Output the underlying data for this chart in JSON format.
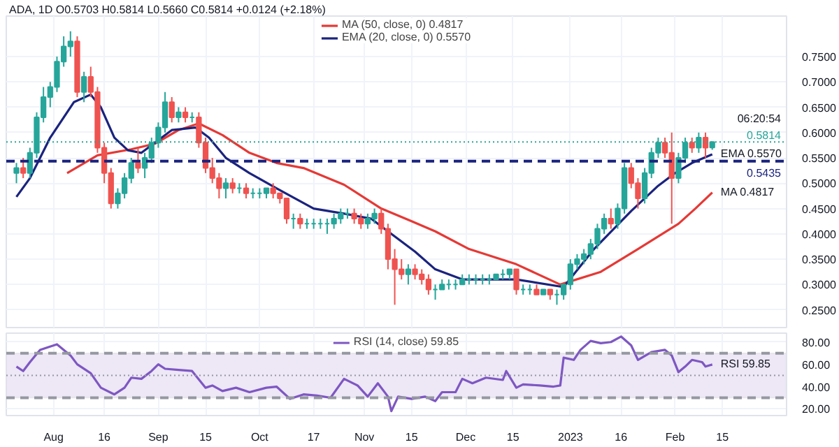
{
  "chart_data": [
    {
      "type": "candlestick",
      "title": "ADA, 1D",
      "annotations": [
        "O0.5703 H0.5814 L0.5660 C0.5814 +0.0124 (+2.18%)",
        "06:20:54",
        {
          "text": "EMA 0.5570",
          "x": "2023-02-12",
          "y": 0.557
        },
        {
          "text": "MA 0.4817",
          "x": "2023-02-12",
          "y": 0.4817
        }
      ],
      "x": [
        "2022-07-21",
        "2022-07-23",
        "2022-07-25",
        "2022-07-27",
        "2022-07-29",
        "2022-07-31",
        "2022-08-02",
        "2022-08-04",
        "2022-08-06",
        "2022-08-08",
        "2022-08-10",
        "2022-08-12",
        "2022-08-14",
        "2022-08-16",
        "2022-08-18",
        "2022-08-20",
        "2022-08-22",
        "2022-08-24",
        "2022-08-26",
        "2022-08-28",
        "2022-08-30",
        "2022-09-01",
        "2022-09-03",
        "2022-09-05",
        "2022-09-07",
        "2022-09-09",
        "2022-09-11",
        "2022-09-13",
        "2022-09-15",
        "2022-09-17",
        "2022-09-19",
        "2022-09-21",
        "2022-09-23",
        "2022-09-25",
        "2022-09-27",
        "2022-09-29",
        "2022-10-01",
        "2022-10-03",
        "2022-10-05",
        "2022-10-07",
        "2022-10-09",
        "2022-10-11",
        "2022-10-13",
        "2022-10-15",
        "2022-10-17",
        "2022-10-19",
        "2022-10-21",
        "2022-10-23",
        "2022-10-25",
        "2022-10-27",
        "2022-10-29",
        "2022-10-31",
        "2022-11-02",
        "2022-11-04",
        "2022-11-06",
        "2022-11-08",
        "2022-11-10",
        "2022-11-12",
        "2022-11-14",
        "2022-11-16",
        "2022-11-18",
        "2022-11-20",
        "2022-11-22",
        "2022-11-24",
        "2022-11-26",
        "2022-11-28",
        "2022-11-30",
        "2022-12-02",
        "2022-12-04",
        "2022-12-06",
        "2022-12-08",
        "2022-12-10",
        "2022-12-12",
        "2022-12-14",
        "2022-12-16",
        "2022-12-18",
        "2022-12-20",
        "2022-12-22",
        "2022-12-24",
        "2022-12-26",
        "2022-12-28",
        "2022-12-30",
        "2023-01-01",
        "2023-01-03",
        "2023-01-05",
        "2023-01-07",
        "2023-01-09",
        "2023-01-11",
        "2023-01-13",
        "2023-01-15",
        "2023-01-17",
        "2023-01-19",
        "2023-01-21",
        "2023-01-23",
        "2023-01-25",
        "2023-01-27",
        "2023-01-29",
        "2023-01-31",
        "2023-02-02",
        "2023-02-04",
        "2023-02-06",
        "2023-02-08",
        "2023-02-10",
        "2023-02-12"
      ],
      "ohlc": [
        [
          0.52,
          0.54,
          0.5,
          0.53
        ],
        [
          0.53,
          0.55,
          0.51,
          0.52
        ],
        [
          0.52,
          0.57,
          0.51,
          0.56
        ],
        [
          0.56,
          0.64,
          0.55,
          0.63
        ],
        [
          0.63,
          0.69,
          0.62,
          0.67
        ],
        [
          0.67,
          0.7,
          0.65,
          0.69
        ],
        [
          0.69,
          0.75,
          0.68,
          0.74
        ],
        [
          0.74,
          0.79,
          0.73,
          0.77
        ],
        [
          0.77,
          0.8,
          0.75,
          0.78
        ],
        [
          0.78,
          0.79,
          0.67,
          0.68
        ],
        [
          0.68,
          0.72,
          0.66,
          0.71
        ],
        [
          0.71,
          0.73,
          0.67,
          0.68
        ],
        [
          0.68,
          0.69,
          0.56,
          0.57
        ],
        [
          0.57,
          0.58,
          0.5,
          0.52
        ],
        [
          0.52,
          0.53,
          0.45,
          0.46
        ],
        [
          0.46,
          0.49,
          0.45,
          0.48
        ],
        [
          0.48,
          0.52,
          0.47,
          0.51
        ],
        [
          0.51,
          0.55,
          0.5,
          0.54
        ],
        [
          0.54,
          0.57,
          0.52,
          0.53
        ],
        [
          0.53,
          0.56,
          0.51,
          0.55
        ],
        [
          0.55,
          0.59,
          0.54,
          0.58
        ],
        [
          0.58,
          0.62,
          0.57,
          0.61
        ],
        [
          0.61,
          0.68,
          0.6,
          0.66
        ],
        [
          0.66,
          0.67,
          0.62,
          0.63
        ],
        [
          0.63,
          0.65,
          0.62,
          0.64
        ],
        [
          0.64,
          0.65,
          0.62,
          0.63
        ],
        [
          0.63,
          0.64,
          0.62,
          0.63
        ],
        [
          0.63,
          0.64,
          0.57,
          0.58
        ],
        [
          0.58,
          0.59,
          0.52,
          0.53
        ],
        [
          0.53,
          0.55,
          0.5,
          0.51
        ],
        [
          0.51,
          0.52,
          0.47,
          0.49
        ],
        [
          0.49,
          0.51,
          0.47,
          0.5
        ],
        [
          0.5,
          0.51,
          0.48,
          0.49
        ],
        [
          0.49,
          0.5,
          0.48,
          0.49
        ],
        [
          0.49,
          0.5,
          0.47,
          0.48
        ],
        [
          0.48,
          0.49,
          0.47,
          0.48
        ],
        [
          0.48,
          0.49,
          0.47,
          0.48
        ],
        [
          0.48,
          0.49,
          0.47,
          0.49
        ],
        [
          0.49,
          0.5,
          0.47,
          0.48
        ],
        [
          0.48,
          0.48,
          0.46,
          0.47
        ],
        [
          0.47,
          0.47,
          0.42,
          0.43
        ],
        [
          0.43,
          0.44,
          0.41,
          0.43
        ],
        [
          0.43,
          0.44,
          0.41,
          0.42
        ],
        [
          0.42,
          0.43,
          0.41,
          0.42
        ],
        [
          0.42,
          0.43,
          0.41,
          0.42
        ],
        [
          0.42,
          0.43,
          0.41,
          0.42
        ],
        [
          0.42,
          0.43,
          0.4,
          0.42
        ],
        [
          0.42,
          0.44,
          0.41,
          0.43
        ],
        [
          0.43,
          0.45,
          0.42,
          0.44
        ],
        [
          0.44,
          0.45,
          0.43,
          0.44
        ],
        [
          0.44,
          0.45,
          0.42,
          0.43
        ],
        [
          0.43,
          0.44,
          0.41,
          0.42
        ],
        [
          0.42,
          0.44,
          0.41,
          0.43
        ],
        [
          0.43,
          0.45,
          0.42,
          0.44
        ],
        [
          0.44,
          0.45,
          0.4,
          0.41
        ],
        [
          0.41,
          0.42,
          0.33,
          0.35
        ],
        [
          0.35,
          0.37,
          0.26,
          0.33
        ],
        [
          0.33,
          0.35,
          0.31,
          0.32
        ],
        [
          0.32,
          0.34,
          0.3,
          0.33
        ],
        [
          0.33,
          0.34,
          0.31,
          0.32
        ],
        [
          0.32,
          0.33,
          0.3,
          0.31
        ],
        [
          0.31,
          0.32,
          0.28,
          0.29
        ],
        [
          0.29,
          0.3,
          0.27,
          0.29
        ],
        [
          0.29,
          0.31,
          0.29,
          0.3
        ],
        [
          0.3,
          0.31,
          0.29,
          0.3
        ],
        [
          0.3,
          0.31,
          0.29,
          0.3
        ],
        [
          0.3,
          0.32,
          0.3,
          0.31
        ],
        [
          0.31,
          0.32,
          0.3,
          0.31
        ],
        [
          0.31,
          0.32,
          0.3,
          0.31
        ],
        [
          0.31,
          0.32,
          0.3,
          0.31
        ],
        [
          0.31,
          0.32,
          0.3,
          0.31
        ],
        [
          0.31,
          0.32,
          0.31,
          0.32
        ],
        [
          0.32,
          0.33,
          0.31,
          0.32
        ],
        [
          0.32,
          0.33,
          0.31,
          0.33
        ],
        [
          0.33,
          0.33,
          0.28,
          0.29
        ],
        [
          0.29,
          0.3,
          0.28,
          0.29
        ],
        [
          0.29,
          0.3,
          0.28,
          0.29
        ],
        [
          0.29,
          0.3,
          0.28,
          0.28
        ],
        [
          0.28,
          0.29,
          0.28,
          0.29
        ],
        [
          0.29,
          0.29,
          0.27,
          0.28
        ],
        [
          0.28,
          0.29,
          0.26,
          0.28
        ],
        [
          0.28,
          0.3,
          0.27,
          0.3
        ],
        [
          0.3,
          0.35,
          0.29,
          0.34
        ],
        [
          0.34,
          0.36,
          0.33,
          0.35
        ],
        [
          0.35,
          0.37,
          0.34,
          0.36
        ],
        [
          0.36,
          0.39,
          0.35,
          0.38
        ],
        [
          0.38,
          0.42,
          0.37,
          0.41
        ],
        [
          0.41,
          0.44,
          0.4,
          0.43
        ],
        [
          0.43,
          0.45,
          0.41,
          0.42
        ],
        [
          0.42,
          0.46,
          0.41,
          0.45
        ],
        [
          0.45,
          0.54,
          0.44,
          0.53
        ],
        [
          0.53,
          0.54,
          0.49,
          0.5
        ],
        [
          0.5,
          0.51,
          0.45,
          0.47
        ],
        [
          0.47,
          0.53,
          0.46,
          0.52
        ],
        [
          0.52,
          0.57,
          0.51,
          0.56
        ],
        [
          0.56,
          0.59,
          0.55,
          0.58
        ],
        [
          0.58,
          0.59,
          0.55,
          0.56
        ],
        [
          0.56,
          0.6,
          0.42,
          0.51
        ],
        [
          0.51,
          0.56,
          0.5,
          0.55
        ],
        [
          0.55,
          0.59,
          0.54,
          0.58
        ],
        [
          0.58,
          0.59,
          0.56,
          0.57
        ],
        [
          0.57,
          0.6,
          0.56,
          0.59
        ],
        [
          0.59,
          0.6,
          0.55,
          0.57
        ],
        [
          0.5703,
          0.5814,
          0.566,
          0.5814
        ]
      ],
      "series": [
        {
          "name": "MA (50, close, 0) 0.4817",
          "type": "line",
          "color": "#e53935",
          "x": [
            "2022-08-05",
            "2022-08-14",
            "2022-08-24",
            "2022-08-31",
            "2022-09-07",
            "2022-09-13",
            "2022-09-20",
            "2022-09-28",
            "2022-10-06",
            "2022-10-14",
            "2022-10-26",
            "2022-11-06",
            "2022-11-15",
            "2022-11-22",
            "2022-12-02",
            "2022-12-16",
            "2022-12-29",
            "2023-01-10",
            "2023-01-21",
            "2023-02-02",
            "2023-02-07",
            "2023-02-12"
          ],
          "values": [
            0.52,
            0.555,
            0.567,
            0.578,
            0.605,
            0.618,
            0.595,
            0.56,
            0.54,
            0.53,
            0.497,
            0.45,
            0.425,
            0.405,
            0.37,
            0.34,
            0.3,
            0.325,
            0.37,
            0.42,
            0.45,
            0.4817
          ]
        },
        {
          "name": "EMA (20, close, 0) 0.5570",
          "type": "line",
          "color": "#1a237e",
          "x": [
            "2022-07-21",
            "2022-07-25",
            "2022-07-31",
            "2022-08-07",
            "2022-08-12",
            "2022-08-15",
            "2022-08-19",
            "2022-08-23",
            "2022-08-27",
            "2022-08-31",
            "2022-09-05",
            "2022-09-12",
            "2022-09-16",
            "2022-09-21",
            "2022-09-28",
            "2022-10-06",
            "2022-10-17",
            "2022-10-26",
            "2022-11-03",
            "2022-11-08",
            "2022-11-16",
            "2022-11-22",
            "2022-11-30",
            "2022-12-16",
            "2022-12-30",
            "2023-01-08",
            "2023-01-19",
            "2023-01-27",
            "2023-02-01",
            "2023-02-06",
            "2023-02-12"
          ],
          "values": [
            0.473,
            0.51,
            0.59,
            0.66,
            0.675,
            0.65,
            0.59,
            0.565,
            0.56,
            0.58,
            0.605,
            0.61,
            0.59,
            0.55,
            0.52,
            0.49,
            0.45,
            0.44,
            0.43,
            0.405,
            0.365,
            0.33,
            0.31,
            0.31,
            0.295,
            0.37,
            0.445,
            0.495,
            0.52,
            0.54,
            0.557
          ]
        }
      ],
      "ref_lines": [
        {
          "axis": "y",
          "value": 0.5435,
          "label": "0.5435",
          "color": "#1a237e",
          "line_style": "dashed"
        },
        {
          "axis": "y",
          "value": 0.5814,
          "label": "0.5814",
          "color": "#26a69a",
          "line_style": "dotted"
        }
      ],
      "xlim": [
        "2022-07-18",
        "2023-03-06"
      ],
      "ylim": [
        0.215,
        0.83
      ],
      "yticks": [
        {
          "value": 0.25,
          "label": "0.2500"
        },
        {
          "value": 0.3,
          "label": "0.3000"
        },
        {
          "value": 0.35,
          "label": "0.3500"
        },
        {
          "value": 0.4,
          "label": "0.4000"
        },
        {
          "value": 0.45,
          "label": "0.4500"
        },
        {
          "value": 0.5,
          "label": "0.5000"
        },
        {
          "value": 0.55,
          "label": "0.5500"
        },
        {
          "value": 0.6,
          "label": "0.6000"
        },
        {
          "value": 0.65,
          "label": "0.6500"
        },
        {
          "value": 0.7,
          "label": "0.7000"
        },
        {
          "value": 0.75,
          "label": "0.7500"
        }
      ],
      "xticks": [
        {
          "value": "2022-08-01",
          "label": null
        },
        {
          "value": "2022-08-16",
          "label": null
        },
        {
          "value": "2022-09-01",
          "label": null
        },
        {
          "value": "2022-09-15",
          "label": null
        },
        {
          "value": "2022-10-01",
          "label": null
        },
        {
          "value": "2022-10-17",
          "label": null
        },
        {
          "value": "2022-11-01",
          "label": null
        },
        {
          "value": "2022-11-15",
          "label": null
        },
        {
          "value": "2022-12-01",
          "label": null
        },
        {
          "value": "2022-12-15",
          "label": null
        },
        {
          "value": "2023-01-01",
          "label": null
        },
        {
          "value": "2023-01-16",
          "label": null
        },
        {
          "value": "2023-02-01",
          "label": null
        },
        {
          "value": "2023-02-15",
          "label": null
        }
      ],
      "tick_labels": "y",
      "grid": true,
      "legend": "top"
    },
    {
      "type": "line",
      "annotations": [
        {
          "text": "RSI 59.85",
          "x": "2023-02-12",
          "y": 59.85
        }
      ],
      "series": [
        {
          "name": "RSI (14, close) 59.85",
          "color": "#7e57c2",
          "x": [
            "2022-07-21",
            "2022-07-23",
            "2022-07-25",
            "2022-07-28",
            "2022-07-30",
            "2022-08-02",
            "2022-08-04",
            "2022-08-06",
            "2022-08-08",
            "2022-08-12",
            "2022-08-15",
            "2022-08-19",
            "2022-08-22",
            "2022-08-24",
            "2022-08-27",
            "2022-08-30",
            "2022-09-01",
            "2022-09-03",
            "2022-09-07",
            "2022-09-11",
            "2022-09-15",
            "2022-09-17",
            "2022-09-20",
            "2022-09-24",
            "2022-09-28",
            "2022-10-03",
            "2022-10-06",
            "2022-10-10",
            "2022-10-14",
            "2022-10-18",
            "2022-10-22",
            "2022-10-26",
            "2022-10-30",
            "2022-11-02",
            "2022-11-05",
            "2022-11-08",
            "2022-11-09",
            "2022-11-11",
            "2022-11-15",
            "2022-11-19",
            "2022-11-22",
            "2022-11-24",
            "2022-11-28",
            "2022-11-30",
            "2022-12-03",
            "2022-12-07",
            "2022-12-12",
            "2022-12-13",
            "2022-12-16",
            "2022-12-18",
            "2022-12-23",
            "2022-12-27",
            "2022-12-29",
            "2022-12-30",
            "2023-01-02",
            "2023-01-04",
            "2023-01-07",
            "2023-01-10",
            "2023-01-13",
            "2023-01-16",
            "2023-01-19",
            "2023-01-21",
            "2023-01-25",
            "2023-01-29",
            "2023-01-31",
            "2023-02-02",
            "2023-02-04",
            "2023-02-06",
            "2023-02-09",
            "2023-02-10",
            "2023-02-12"
          ],
          "values": [
            58,
            54,
            62,
            73,
            75,
            78,
            73,
            68,
            60,
            52,
            39,
            33,
            39,
            48,
            47,
            54,
            60,
            56,
            55,
            54,
            39,
            41,
            36,
            39,
            35,
            39,
            40,
            29,
            33,
            32,
            30,
            47,
            41,
            31,
            43,
            31,
            18,
            31,
            29,
            31,
            27,
            35,
            35,
            47,
            43,
            48,
            46,
            54,
            39,
            42,
            41,
            40,
            41,
            66,
            64,
            73,
            81,
            79,
            80,
            85,
            77,
            64,
            71,
            73,
            68,
            53,
            58,
            64,
            62,
            58,
            59.85
          ]
        }
      ],
      "ref_lines": [
        {
          "axis": "y",
          "value": 70,
          "color": "#9598a1",
          "line_style": "dashed"
        },
        {
          "axis": "y",
          "value": 50,
          "color": "#9598a1",
          "line_style": "dotted"
        },
        {
          "axis": "y",
          "value": 30,
          "color": "#9598a1",
          "line_style": "dashed"
        }
      ],
      "bands": [
        {
          "axis": "y",
          "from": 30,
          "to": 70,
          "color": "#ede7f6"
        }
      ],
      "xlim": [
        "2022-07-18",
        "2023-03-06"
      ],
      "ylim": [
        14,
        88
      ],
      "yticks": [
        {
          "value": 20,
          "label": "20.00"
        },
        {
          "value": 40,
          "label": "40.00"
        },
        {
          "value": 60,
          "label": "60.00"
        },
        {
          "value": 80,
          "label": "80.00"
        }
      ],
      "xticks": [
        {
          "value": "2022-08-01",
          "label": "Aug"
        },
        {
          "value": "2022-08-16",
          "label": "16"
        },
        {
          "value": "2022-09-01",
          "label": "Sep"
        },
        {
          "value": "2022-09-15",
          "label": "15"
        },
        {
          "value": "2022-10-01",
          "label": "Oct"
        },
        {
          "value": "2022-10-17",
          "label": "17"
        },
        {
          "value": "2022-11-01",
          "label": "Nov"
        },
        {
          "value": "2022-11-15",
          "label": "15"
        },
        {
          "value": "2022-12-01",
          "label": "Dec"
        },
        {
          "value": "2022-12-15",
          "label": "15"
        },
        {
          "value": "2023-01-01",
          "label": "2023"
        },
        {
          "value": "2023-01-16",
          "label": "16"
        },
        {
          "value": "2023-02-01",
          "label": "Feb"
        },
        {
          "value": "2023-02-15",
          "label": "15"
        }
      ],
      "grid": true,
      "legend": "top"
    }
  ]
}
